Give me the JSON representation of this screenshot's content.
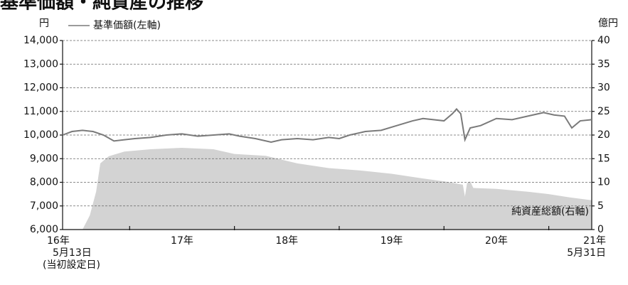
{
  "chart_data": {
    "type": "line",
    "title": "基準価額・純資産の推移",
    "y_unit": "円",
    "y2_unit": "億円",
    "area_label": "純資産総額(右軸)",
    "xlim": [
      2016.36,
      2021.41
    ],
    "xticks": [
      {
        "value": 2016.36,
        "label": "16年\n5月13日\n(当初設定日)"
      },
      {
        "value": 2017.5,
        "label": "17年"
      },
      {
        "value": 2018.5,
        "label": "18年"
      },
      {
        "value": 2019.5,
        "label": "19年"
      },
      {
        "value": 2020.5,
        "label": "20年"
      },
      {
        "value": 2021.41,
        "label": "21年\n5月31日"
      }
    ],
    "year_marks": [
      2017,
      2018,
      2019,
      2020,
      2021
    ],
    "ylim": [
      6000,
      14000
    ],
    "yticks": [
      {
        "value": 6000,
        "label": "6,000"
      },
      {
        "value": 7000,
        "label": "7,000"
      },
      {
        "value": 8000,
        "label": "8,000"
      },
      {
        "value": 9000,
        "label": "9,000"
      },
      {
        "value": 10000,
        "label": "10,000"
      },
      {
        "value": 11000,
        "label": "11,000"
      },
      {
        "value": 12000,
        "label": "12,000"
      },
      {
        "value": 13000,
        "label": "13,000"
      },
      {
        "value": 14000,
        "label": "14,000"
      }
    ],
    "y2lim": [
      0,
      40
    ],
    "y2ticks": [
      0,
      5,
      10,
      15,
      20,
      25,
      30,
      35,
      40
    ],
    "grid": true,
    "series": [
      {
        "name": "純資産総額",
        "kind": "area",
        "axis": "y2",
        "color": "#d3d3d3",
        "x": [
          2016.36,
          2016.55,
          2016.62,
          2016.68,
          2016.72,
          2016.8,
          2016.95,
          2017.2,
          2017.5,
          2017.8,
          2018.0,
          2018.3,
          2018.6,
          2018.9,
          2019.2,
          2019.5,
          2019.8,
          2020.0,
          2020.18,
          2020.2,
          2020.22,
          2020.25,
          2020.28,
          2020.5,
          2020.8,
          2021.0,
          2021.2,
          2021.41
        ],
        "values": [
          0,
          0,
          3,
          8,
          14,
          15.5,
          16.5,
          17,
          17.3,
          17,
          16,
          15.6,
          14,
          13,
          12.5,
          11.8,
          10.8,
          10.2,
          9.5,
          7,
          9.8,
          10.2,
          8.8,
          8.6,
          8,
          7.5,
          6.8,
          6.2
        ]
      },
      {
        "name": "基準価額(左軸)",
        "kind": "line",
        "color": "#7a7a7a",
        "x": [
          2016.36,
          2016.45,
          2016.55,
          2016.65,
          2016.75,
          2016.85,
          2016.95,
          2017.05,
          2017.2,
          2017.35,
          2017.5,
          2017.65,
          2017.8,
          2017.95,
          2018.05,
          2018.2,
          2018.35,
          2018.45,
          2018.6,
          2018.75,
          2018.9,
          2019.0,
          2019.1,
          2019.25,
          2019.4,
          2019.55,
          2019.7,
          2019.8,
          2019.9,
          2020.0,
          2020.08,
          2020.12,
          2020.16,
          2020.2,
          2020.25,
          2020.35,
          2020.5,
          2020.65,
          2020.8,
          2020.95,
          2021.05,
          2021.15,
          2021.22,
          2021.3,
          2021.41
        ],
        "values": [
          10000,
          10150,
          10200,
          10150,
          10000,
          9750,
          9800,
          9850,
          9900,
          10000,
          10050,
          9950,
          10000,
          10050,
          9950,
          9850,
          9700,
          9800,
          9850,
          9800,
          9900,
          9850,
          10000,
          10150,
          10200,
          10400,
          10600,
          10700,
          10650,
          10600,
          10900,
          11100,
          10900,
          9800,
          10300,
          10400,
          10700,
          10650,
          10800,
          10950,
          10850,
          10800,
          10300,
          10600,
          10650
        ]
      }
    ]
  }
}
